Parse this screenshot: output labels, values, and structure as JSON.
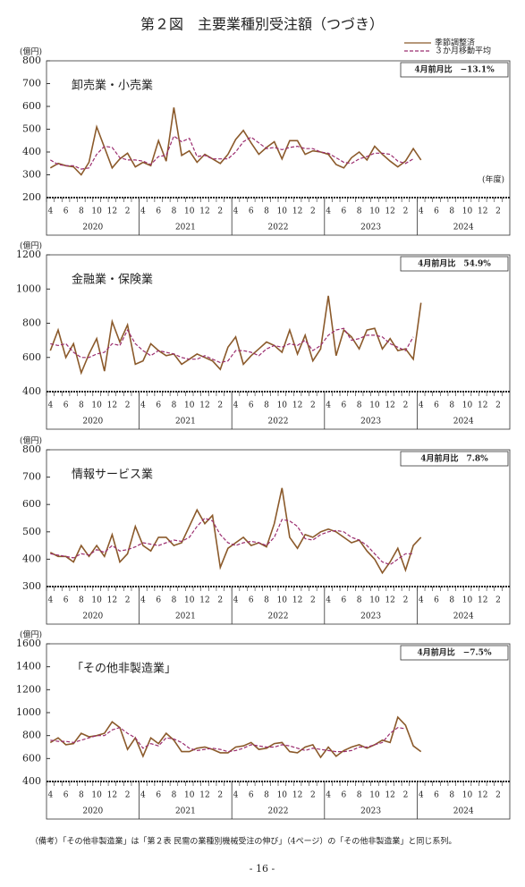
{
  "title": "第２図　主要業種別受注額（つづき）",
  "note": "（備考）「その他非製造業」は「第２表 民需の業種別機械受注の伸び」（4ページ）の「その他非製造業」と同じ系列。",
  "page_number": "- 16 -",
  "chart_data": [
    {
      "type": "line",
      "title": "卸売業・小売業",
      "ylabel": "(億円)",
      "xlabel": "(年度)",
      "annotation": "4月前月比　−13.1%",
      "legend": "upper right",
      "categories": [
        "4",
        null,
        "6",
        null,
        "8",
        null,
        "10",
        null,
        "12",
        null,
        "2",
        null,
        "4",
        null,
        "6",
        null,
        "8",
        null,
        "10",
        null,
        "12",
        null,
        "2",
        null,
        "4",
        null,
        "6",
        null,
        "8",
        null,
        "10",
        null,
        "12",
        null,
        "2",
        null,
        "4",
        null,
        "6",
        null,
        "8",
        null,
        "10",
        null,
        "12",
        null,
        "2",
        null,
        "4",
        null,
        "6",
        null,
        "8",
        null,
        "10",
        null,
        "12",
        null,
        "2",
        null
      ],
      "year_groups": [
        "2020",
        "2021",
        "2022",
        "2023",
        "2024"
      ],
      "ylim": [
        200,
        800
      ],
      "yticks": [
        200,
        300,
        400,
        500,
        600,
        700,
        800
      ],
      "series": [
        {
          "name": "季節調整済",
          "color": "#8b5a2b",
          "dash": false,
          "values": [
            330,
            350,
            340,
            335,
            300,
            355,
            510,
            420,
            330,
            370,
            395,
            335,
            355,
            340,
            450,
            360,
            595,
            385,
            405,
            355,
            390,
            370,
            350,
            390,
            455,
            495,
            440,
            390,
            420,
            445,
            370,
            450,
            450,
            390,
            405,
            400,
            390,
            345,
            330,
            375,
            400,
            365,
            425,
            390,
            360,
            335,
            360,
            415,
            365,
            null,
            null,
            null,
            null,
            null,
            null,
            null,
            null,
            null,
            null,
            null
          ]
        },
        {
          "name": "３か月移動平均",
          "color": "#9b2d6f",
          "dash": true,
          "values": [
            365,
            345,
            340,
            340,
            325,
            330,
            390,
            425,
            420,
            375,
            365,
            365,
            360,
            345,
            380,
            385,
            470,
            445,
            460,
            380,
            385,
            370,
            370,
            370,
            400,
            445,
            465,
            440,
            415,
            420,
            410,
            420,
            425,
            415,
            415,
            400,
            395,
            375,
            355,
            350,
            370,
            380,
            395,
            395,
            390,
            360,
            350,
            370,
            null,
            null,
            null,
            null,
            null,
            null,
            null,
            null,
            null,
            null,
            null,
            null
          ]
        }
      ]
    },
    {
      "type": "line",
      "title": "金融業・保険業",
      "ylabel": "(億円)",
      "annotation": "4月前月比　54.9%",
      "legend": false,
      "categories": [
        "4",
        null,
        "6",
        null,
        "8",
        null,
        "10",
        null,
        "12",
        null,
        "2",
        null,
        "4",
        null,
        "6",
        null,
        "8",
        null,
        "10",
        null,
        "12",
        null,
        "2",
        null,
        "4",
        null,
        "6",
        null,
        "8",
        null,
        "10",
        null,
        "12",
        null,
        "2",
        null,
        "4",
        null,
        "6",
        null,
        "8",
        null,
        "10",
        null,
        "12",
        null,
        "2",
        null,
        "4",
        null,
        "6",
        null,
        "8",
        null,
        "10",
        null,
        "12",
        null,
        "2",
        null
      ],
      "year_groups": [
        "2020",
        "2021",
        "2022",
        "2023",
        "2024"
      ],
      "ylim": [
        400,
        1200
      ],
      "yticks": [
        400,
        600,
        800,
        1000,
        1200
      ],
      "series": [
        {
          "name": "季節調整済",
          "color": "#8b5a2b",
          "dash": false,
          "values": [
            640,
            760,
            600,
            680,
            510,
            620,
            710,
            520,
            810,
            690,
            790,
            560,
            580,
            680,
            640,
            610,
            620,
            560,
            590,
            620,
            600,
            580,
            530,
            660,
            720,
            560,
            610,
            650,
            690,
            670,
            630,
            760,
            620,
            730,
            580,
            650,
            960,
            610,
            760,
            720,
            650,
            760,
            770,
            650,
            710,
            640,
            650,
            590,
            920,
            null,
            null,
            null,
            null,
            null,
            null,
            null,
            null,
            null,
            null,
            null
          ]
        },
        {
          "name": "３か月移動平均",
          "color": "#9b2d6f",
          "dash": true,
          "values": [
            680,
            670,
            680,
            630,
            600,
            600,
            620,
            630,
            680,
            670,
            760,
            680,
            640,
            610,
            640,
            630,
            620,
            600,
            590,
            590,
            610,
            590,
            570,
            580,
            640,
            640,
            630,
            610,
            650,
            670,
            660,
            680,
            670,
            700,
            640,
            670,
            730,
            760,
            770,
            700,
            710,
            730,
            730,
            720,
            680,
            660,
            640,
            720,
            null,
            null,
            null,
            null,
            null,
            null,
            null,
            null,
            null,
            null,
            null,
            null
          ]
        }
      ]
    },
    {
      "type": "line",
      "title": "情報サービス業",
      "ylabel": "(億円)",
      "annotation": "4月前月比　7.8%",
      "legend": false,
      "categories": [
        "4",
        null,
        "6",
        null,
        "8",
        null,
        "10",
        null,
        "12",
        null,
        "2",
        null,
        "4",
        null,
        "6",
        null,
        "8",
        null,
        "10",
        null,
        "12",
        null,
        "2",
        null,
        "4",
        null,
        "6",
        null,
        "8",
        null,
        "10",
        null,
        "12",
        null,
        "2",
        null,
        "4",
        null,
        "6",
        null,
        "8",
        null,
        "10",
        null,
        "12",
        null,
        "2",
        null,
        "4",
        null,
        "6",
        null,
        "8",
        null,
        "10",
        null,
        "12",
        null,
        "2",
        null
      ],
      "year_groups": [
        "2020",
        "2021",
        "2022",
        "2023",
        "2024"
      ],
      "ylim": [
        300,
        800
      ],
      "yticks": [
        300,
        400,
        500,
        600,
        700,
        800
      ],
      "series": [
        {
          "name": "季節調整済",
          "color": "#8b5a2b",
          "dash": false,
          "values": [
            425,
            410,
            410,
            390,
            450,
            410,
            450,
            410,
            490,
            390,
            420,
            520,
            450,
            430,
            480,
            480,
            450,
            460,
            520,
            580,
            530,
            560,
            370,
            440,
            460,
            480,
            450,
            460,
            445,
            530,
            660,
            480,
            440,
            490,
            480,
            500,
            510,
            500,
            480,
            460,
            470,
            430,
            400,
            350,
            390,
            440,
            360,
            450,
            480,
            null,
            null,
            null,
            null,
            null,
            null,
            null,
            null,
            null,
            null,
            null
          ]
        },
        {
          "name": "３か月移動平均",
          "color": "#9b2d6f",
          "dash": true,
          "values": [
            420,
            415,
            410,
            405,
            420,
            415,
            435,
            425,
            450,
            430,
            435,
            445,
            460,
            455,
            450,
            460,
            470,
            465,
            480,
            520,
            550,
            540,
            490,
            460,
            450,
            460,
            465,
            460,
            450,
            480,
            545,
            540,
            520,
            475,
            470,
            490,
            500,
            505,
            500,
            480,
            470,
            450,
            420,
            390,
            380,
            400,
            420,
            420,
            null,
            null,
            null,
            null,
            null,
            null,
            null,
            null,
            null,
            null,
            null,
            null
          ]
        }
      ]
    },
    {
      "type": "line",
      "title": "「その他非製造業」",
      "ylabel": "(億円)",
      "annotation": "4月前月比　−7.5%",
      "legend": false,
      "categories": [
        "4",
        null,
        "6",
        null,
        "8",
        null,
        "10",
        null,
        "12",
        null,
        "2",
        null,
        "4",
        null,
        "6",
        null,
        "8",
        null,
        "10",
        null,
        "12",
        null,
        "2",
        null,
        "4",
        null,
        "6",
        null,
        "8",
        null,
        "10",
        null,
        "12",
        null,
        "2",
        null,
        "4",
        null,
        "6",
        null,
        "8",
        null,
        "10",
        null,
        "12",
        null,
        "2",
        null,
        "4",
        null,
        "6",
        null,
        "8",
        null,
        "10",
        null,
        "12",
        null,
        "2",
        null
      ],
      "year_groups": [
        "2020",
        "2021",
        "2022",
        "2023",
        "2024"
      ],
      "ylim": [
        400,
        1600
      ],
      "yticks": [
        400,
        600,
        800,
        1000,
        1200,
        1400,
        1600
      ],
      "series": [
        {
          "name": "季節調整済",
          "color": "#8b5a2b",
          "dash": false,
          "values": [
            740,
            780,
            720,
            730,
            820,
            790,
            800,
            820,
            920,
            870,
            680,
            780,
            620,
            780,
            730,
            820,
            760,
            660,
            660,
            690,
            700,
            680,
            650,
            650,
            700,
            710,
            740,
            680,
            690,
            730,
            740,
            660,
            650,
            700,
            720,
            610,
            700,
            620,
            670,
            700,
            720,
            690,
            720,
            760,
            740,
            960,
            890,
            710,
            660,
            null,
            null,
            null,
            null,
            null,
            null,
            null,
            null,
            null,
            null,
            null
          ]
        },
        {
          "name": "３か月移動平均",
          "color": "#9b2d6f",
          "dash": true,
          "values": [
            760,
            750,
            750,
            740,
            760,
            780,
            800,
            800,
            850,
            870,
            820,
            780,
            690,
            730,
            710,
            780,
            770,
            740,
            690,
            670,
            680,
            690,
            680,
            660,
            670,
            690,
            720,
            710,
            700,
            700,
            720,
            710,
            690,
            670,
            690,
            680,
            670,
            660,
            660,
            670,
            700,
            700,
            720,
            740,
            820,
            870,
            860,
            null,
            null,
            null,
            null,
            null,
            null,
            null,
            null,
            null,
            null,
            null,
            null,
            null
          ]
        }
      ]
    }
  ]
}
